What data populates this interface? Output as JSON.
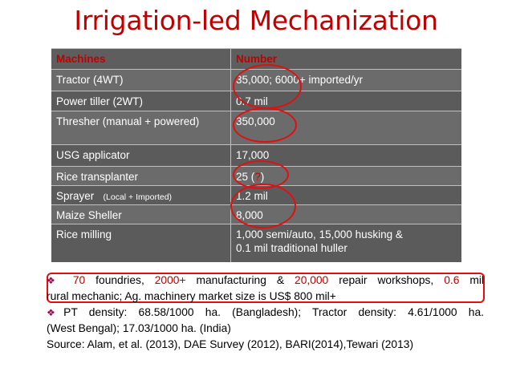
{
  "title": "Irrigation-led Mechanization",
  "table": {
    "headers": [
      "Machines",
      "Number"
    ],
    "rows": [
      {
        "machine": "Tractor (4WT)",
        "number": "35,000; 6000+ imported/yr"
      },
      {
        "machine": "Power tiller (2WT)",
        "number": "0.7 mil"
      },
      {
        "machine": "Thresher  (manual + powered)",
        "number": "350,000"
      },
      {
        "machine": "USG applicator",
        "number": "17,000"
      },
      {
        "machine": "Rice transplanter",
        "number_pre": "25 (",
        "number_q": "?",
        "number_post": ")"
      },
      {
        "machine": "Sprayer",
        "machine_small": "(Local + Imported)",
        "number": "1.2 mil"
      },
      {
        "machine": "Maize Sheller",
        "number": "8,000"
      },
      {
        "machine": "Rice milling",
        "number_line1": "1,000 semi/auto, 15,000 husking &",
        "number_line2": "0.1 mil traditional huller"
      }
    ]
  },
  "notes": {
    "bullet1": {
      "n1": "70",
      "t1": " foundries, ",
      "n2": "2000+",
      "t2": " manufacturing & ",
      "n3": "20,000",
      "t3": " repair workshops, ",
      "n4": "0.6",
      "t4": " mil",
      "line2": "rural mechanic;  Ag. machinery market size is US$ 800 mil+"
    },
    "bullet2": {
      "line1": "PT density:  68.58/1000 ha. (Bangladesh); Tractor density: 4.61/1000 ha.",
      "line2": "(West Bengal); 17.03/1000 ha. (India)"
    },
    "source": " Source: Alam, et al. (2013), DAE Survey (2012), BARI(2014),Tewari (2013)"
  },
  "colors": {
    "title": "#c00000",
    "table_bg": "#6b6b6b",
    "highlight": "#e01010"
  }
}
